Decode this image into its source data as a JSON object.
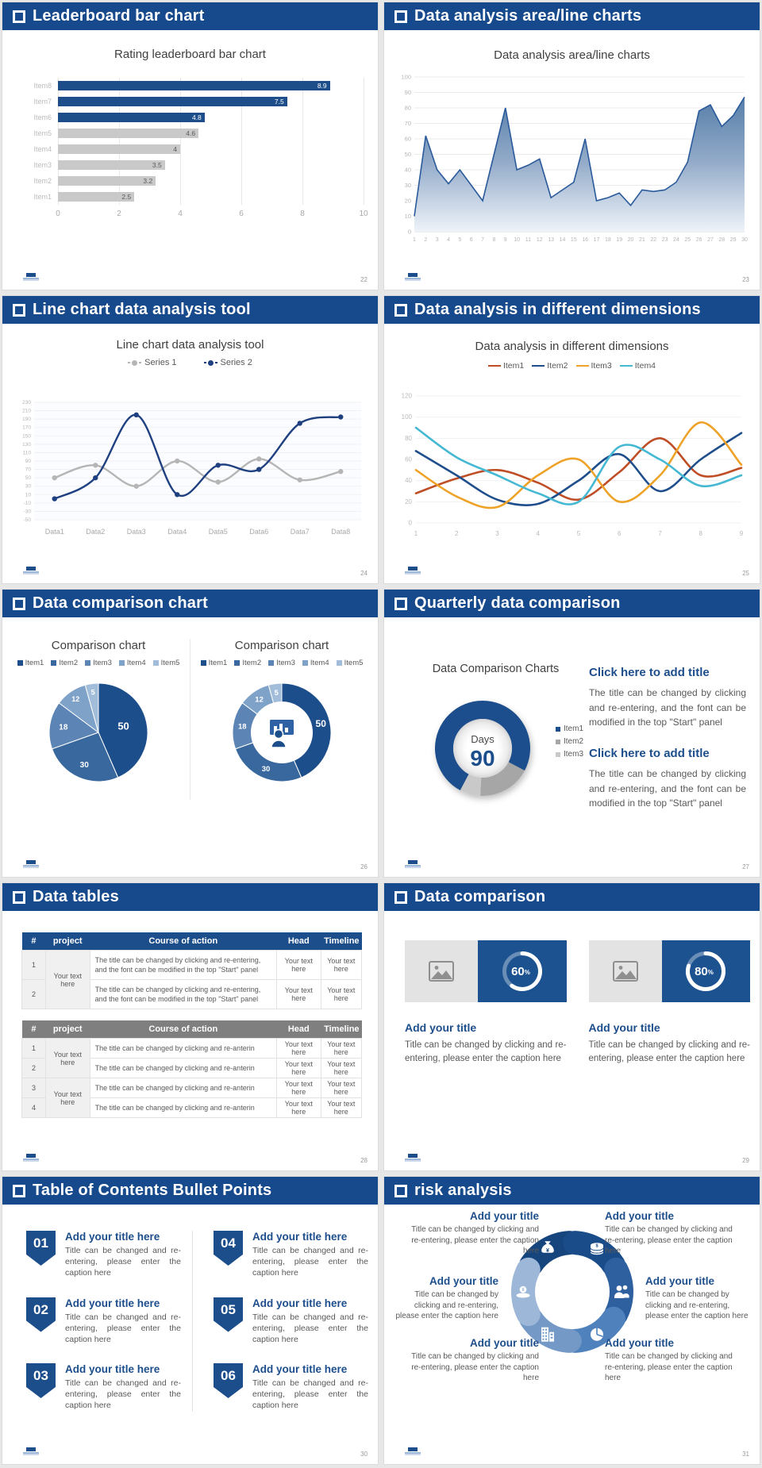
{
  "page_background": "#e7e7e7",
  "slides": [
    {
      "name": "leaderboard-bar-chart",
      "header": "Leaderboard bar chart",
      "page": "22",
      "chart": {
        "type": "bar",
        "title": "Rating leaderboard bar chart",
        "categories": [
          "Item8",
          "Item7",
          "Item6",
          "Item5",
          "Item4",
          "Item3",
          "Item2",
          "Item1"
        ],
        "values": [
          8.9,
          7.5,
          4.8,
          4.6,
          4,
          3.5,
          3.2,
          2.5
        ],
        "bar_colors": [
          "#1d4e89",
          "#1d4e89",
          "#1d4e89",
          "#c9c9c9",
          "#c9c9c9",
          "#c9c9c9",
          "#c9c9c9",
          "#c9c9c9"
        ],
        "xticks": [
          0,
          2,
          4,
          6,
          8,
          10
        ],
        "xlim": [
          0,
          10
        ]
      }
    },
    {
      "name": "area-line-charts",
      "header": "Data analysis area/line charts",
      "page": "23",
      "chart": {
        "type": "area",
        "title": "Data analysis area/line charts",
        "x": [
          1,
          2,
          3,
          4,
          5,
          6,
          7,
          8,
          9,
          10,
          11,
          12,
          13,
          14,
          15,
          16,
          17,
          18,
          19,
          20,
          21,
          22,
          23,
          24,
          25,
          26,
          27,
          28,
          29,
          30
        ],
        "values": [
          10,
          62,
          40,
          31,
          40,
          30,
          20,
          50,
          80,
          40,
          43,
          47,
          22,
          27,
          32,
          60,
          20,
          22,
          25,
          17,
          27,
          26,
          27,
          32,
          45,
          78,
          82,
          68,
          75,
          87
        ],
        "ylim": [
          0,
          100
        ],
        "ytick_step": 10,
        "line_color": "#2a5a9b",
        "fill_top": "#44709f",
        "fill_bottom": "#eef3f9"
      }
    },
    {
      "name": "line-chart-tool",
      "header": "Line chart data analysis tool",
      "page": "24",
      "chart": {
        "type": "line",
        "title": "Line chart data analysis tool",
        "categories": [
          "Data1",
          "Data2",
          "Data3",
          "Data4",
          "Data5",
          "Data6",
          "Data7",
          "Data8"
        ],
        "series": [
          {
            "name": "Series 1",
            "color": "#b5b5b5",
            "values": [
              50,
              80,
              30,
              90,
              40,
              95,
              45,
              65
            ]
          },
          {
            "name": "Series 2",
            "color": "#1e4080",
            "values": [
              0,
              50,
              200,
              10,
              80,
              70,
              180,
              195
            ]
          }
        ],
        "ylim": [
          -50,
          230
        ],
        "ytick_step": 20
      }
    },
    {
      "name": "dimensions",
      "header": "Data analysis in different dimensions",
      "page": "25",
      "chart": {
        "type": "line",
        "title": "Data analysis in different dimensions",
        "x": [
          1,
          2,
          3,
          4,
          5,
          6,
          7,
          8,
          9
        ],
        "series": [
          {
            "name": "Item1",
            "color": "#bf4d26",
            "values": [
              28,
              42,
              50,
              38,
              22,
              48,
              80,
              45,
              52
            ]
          },
          {
            "name": "Item2",
            "color": "#1f4e8c",
            "values": [
              68,
              45,
              22,
              18,
              40,
              65,
              30,
              60,
              85
            ]
          },
          {
            "name": "Item3",
            "color": "#efa228",
            "values": [
              50,
              25,
              15,
              45,
              60,
              20,
              45,
              95,
              55
            ]
          },
          {
            "name": "Item4",
            "color": "#45b8d4",
            "values": [
              90,
              62,
              45,
              28,
              20,
              72,
              60,
              35,
              45
            ]
          }
        ],
        "ylim": [
          0,
          120
        ],
        "ytick_step": 20
      }
    },
    {
      "name": "comparison-pies",
      "header": "Data comparison chart",
      "page": "26",
      "charts": [
        {
          "type": "pie",
          "title": "Comparison chart",
          "legend": [
            "Item1",
            "Item2",
            "Item3",
            "Item4",
            "Item5"
          ],
          "values": [
            50,
            30,
            18,
            12,
            5
          ],
          "colors": [
            "#1d4e8c",
            "#39689f",
            "#5c85b5",
            "#7fa2c9",
            "#a2bdd9"
          ]
        },
        {
          "type": "donut",
          "title": "Comparison chart",
          "legend": [
            "Item1",
            "Item2",
            "Item3",
            "Item4",
            "Item5"
          ],
          "values": [
            50,
            30,
            18,
            12,
            5
          ],
          "colors": [
            "#1d4e8c",
            "#39689f",
            "#5c85b5",
            "#7fa2c9",
            "#a2bdd9"
          ],
          "center_icon": "presenter-icon"
        }
      ]
    },
    {
      "name": "quarterly-comparison",
      "header": "Quarterly data comparison",
      "page": "27",
      "chart": {
        "type": "donut",
        "title": "Data Comparison Charts",
        "center_label": "Days",
        "center_value": "90",
        "legend": [
          "Item1",
          "Item2",
          "Item3"
        ],
        "values": [
          75,
          18,
          7
        ],
        "colors": [
          "#1d4e8c",
          "#a6a6a6",
          "#c9c9c9"
        ]
      },
      "blocks": [
        {
          "title": "Click here to add title",
          "body": "The title can be changed by clicking and re-entering, and the font can be modified in the top \"Start\" panel"
        },
        {
          "title": "Click here to add title",
          "body": "The title can be changed by clicking and re-entering, and the font can be modified in the top \"Start\" panel"
        }
      ]
    },
    {
      "name": "data-tables",
      "header": "Data tables",
      "page": "28",
      "tables": [
        {
          "style": "blue",
          "columns": [
            "#",
            "project",
            "Course of action",
            "Head",
            "Timeline"
          ],
          "groups": [
            {
              "project": "Your text here",
              "rows": [
                {
                  "n": "1",
                  "course": "The title can be changed by clicking and re-entering, and the font can be modified in the top \"Start\" panel",
                  "head": "Your text here",
                  "timeline": "Your text here"
                },
                {
                  "n": "2",
                  "course": "The title can be changed by clicking and re-entering, and the font can be modified in the top \"Start\" panel",
                  "head": "Your text here",
                  "timeline": "Your text here"
                }
              ]
            }
          ]
        },
        {
          "style": "gray",
          "columns": [
            "#",
            "project",
            "Course of action",
            "Head",
            "Timeline"
          ],
          "groups": [
            {
              "project": "Your text here",
              "rows": [
                {
                  "n": "1",
                  "course": "The title can be changed by clicking and re-anterin",
                  "head": "Your text here",
                  "timeline": "Your text here"
                },
                {
                  "n": "2",
                  "course": "The title can be changed by clicking and re-anterin",
                  "head": "Your text here",
                  "timeline": "Your text here"
                }
              ]
            },
            {
              "project": "Your text here",
              "rows": [
                {
                  "n": "3",
                  "course": "The title can be changed by clicking and re-anterin",
                  "head": "Your text here",
                  "timeline": "Your text here"
                },
                {
                  "n": "4",
                  "course": "The title can be changed by clicking and re-anterin",
                  "head": "Your text here",
                  "timeline": "Your text here"
                }
              ]
            }
          ]
        }
      ]
    },
    {
      "name": "data-comparison-cards",
      "header": "Data comparison",
      "page": "29",
      "cards": [
        {
          "percent": 60,
          "title": "Add your title",
          "caption": "Title can be changed by clicking and re-entering, please enter the caption here"
        },
        {
          "percent": 80,
          "title": "Add your title",
          "caption": "Title can be changed by clicking and re-entering, please enter the caption here"
        }
      ]
    },
    {
      "name": "toc-bullet-points",
      "header": "Table of Contents Bullet Points",
      "page": "30",
      "items": [
        {
          "num": "01",
          "title": "Add your title here",
          "caption": "Title can be changed and re-entering, please enter the caption here"
        },
        {
          "num": "02",
          "title": "Add your title here",
          "caption": "Title can be changed and re-entering, please enter the caption here"
        },
        {
          "num": "03",
          "title": "Add your title here",
          "caption": "Title can be changed and re-entering, please enter the caption here"
        },
        {
          "num": "04",
          "title": "Add your title here",
          "caption": "Title can be changed and re-entering, please enter the caption here"
        },
        {
          "num": "05",
          "title": "Add your title here",
          "caption": "Title can be changed and re-entering, please enter the caption here"
        },
        {
          "num": "06",
          "title": "Add your title here",
          "caption": "Title can be changed and re-entering, please enter the caption here"
        }
      ]
    },
    {
      "name": "risk-analysis",
      "header": "risk analysis",
      "page": "31",
      "petals": [
        {
          "icon": "money-bag-icon",
          "color": "#16457e"
        },
        {
          "icon": "coins-icon",
          "color": "#1b4c8a"
        },
        {
          "icon": "people-icon",
          "color": "#2e60a0"
        },
        {
          "icon": "pie-chart-icon",
          "color": "#4f81bd"
        },
        {
          "icon": "building-icon",
          "color": "#7499c7"
        },
        {
          "icon": "payment-icon",
          "color": "#9db7d8"
        }
      ],
      "texts": [
        {
          "title": "Add your title",
          "caption": "Title can be changed by clicking and re-entering, please enter the caption here"
        },
        {
          "title": "Add your title",
          "caption": "Title can be changed by clicking and re-entering, please enter the caption here"
        },
        {
          "title": "Add your title",
          "caption": "Title can be changed by clicking and re-entering, please enter the caption here"
        },
        {
          "title": "Add your title",
          "caption": "Title can be changed by clicking and re-entering, please enter the caption here"
        },
        {
          "title": "Add your title",
          "caption": "Title can be changed by clicking and re-entering, please enter the caption here"
        },
        {
          "title": "Add your title",
          "caption": "Title can be changed by clicking and re-entering, please enter the caption here"
        }
      ]
    }
  ]
}
